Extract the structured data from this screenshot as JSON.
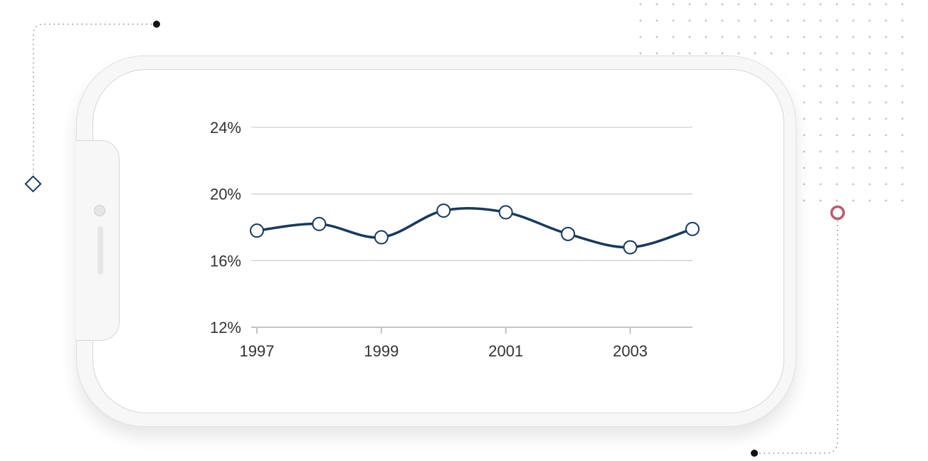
{
  "chart_data": {
    "type": "line",
    "x": [
      1997,
      1998,
      1999,
      2000,
      2001,
      2002,
      2003,
      2004
    ],
    "series": [
      {
        "values": [
          17.8,
          18.2,
          17.4,
          19.0,
          18.9,
          17.6,
          16.8,
          17.9
        ]
      }
    ],
    "xticks": [
      "1997",
      "1999",
      "2001",
      "2003"
    ],
    "yticks": [
      "12%",
      "16%",
      "20%",
      "24%"
    ],
    "ylim": [
      12,
      24
    ],
    "xlim": [
      1997,
      2004
    ],
    "grid": "horizontal",
    "smooth": true,
    "line_color": "#173a5e",
    "marker_fill": "#ffffff",
    "title": "",
    "xlabel": "",
    "ylabel": ""
  },
  "decor": {
    "diamond_color": "#173a5e",
    "ring_color": "#b85a72",
    "dot_color": "#111111"
  }
}
